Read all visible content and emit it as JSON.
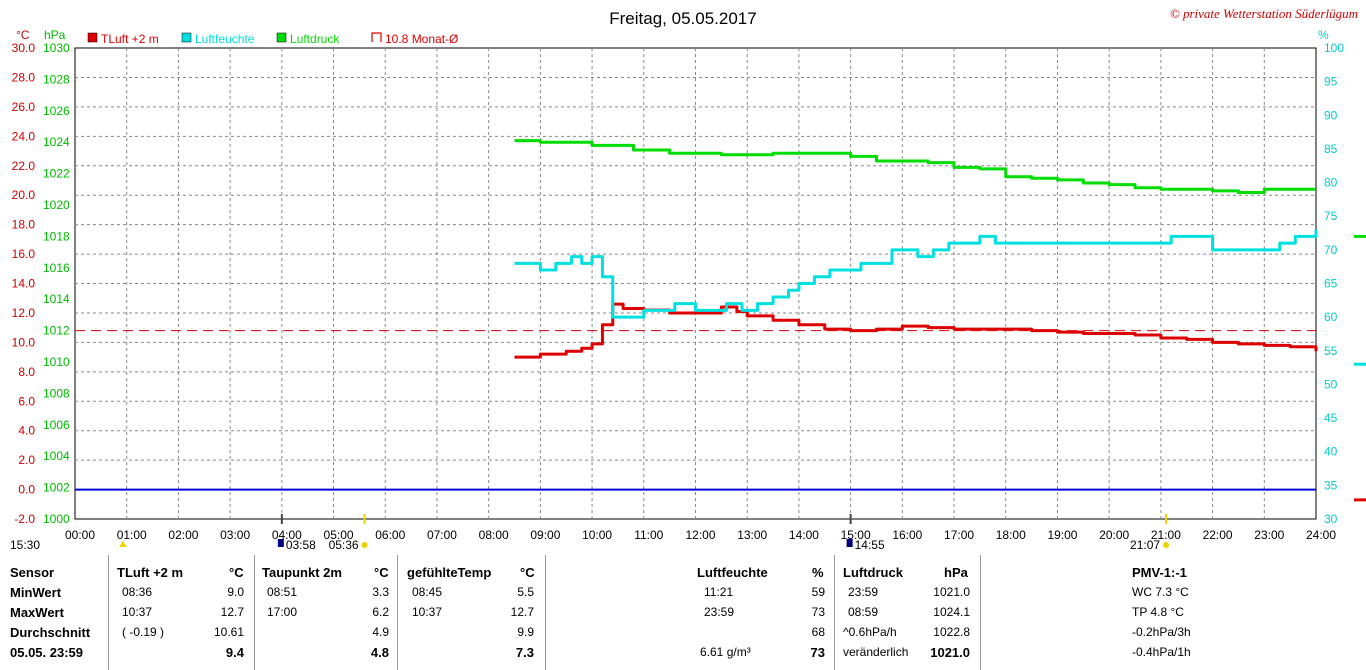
{
  "chart_data": {
    "type": "line",
    "title": "Freitag, 05.05.2017",
    "copyright": "© private Wetterstation Süderlügum",
    "left_unit_temp": "°C",
    "left_unit_press": "hPa",
    "right_unit": "%",
    "legend": [
      {
        "name": "TLuft +2 m",
        "color": "#dd0000"
      },
      {
        "name": "Luftfeuchte",
        "color": "#00e0e0"
      },
      {
        "name": "Luftdruck",
        "color": "#00dd00"
      },
      {
        "name": "10.8 Monat-Ø",
        "color": "#dd0000"
      }
    ],
    "x_ticks": [
      "00:00",
      "01:00",
      "02:00",
      "03:00",
      "04:00",
      "05:00",
      "06:00",
      "07:00",
      "08:00",
      "09:00",
      "10:00",
      "11:00",
      "12:00",
      "13:00",
      "14:00",
      "15:00",
      "16:00",
      "17:00",
      "18:00",
      "19:00",
      "20:00",
      "21:00",
      "22:00",
      "23:00",
      "24:00"
    ],
    "xlim": [
      0,
      24
    ],
    "temp_ticks": [
      "30.0",
      "28.0",
      "26.0",
      "24.0",
      "22.0",
      "20.0",
      "18.0",
      "16.0",
      "14.0",
      "12.0",
      "10.0",
      "8.0",
      "6.0",
      "4.0",
      "2.0",
      "0.0",
      "-2.0"
    ],
    "temp_range": [
      -2,
      30
    ],
    "press_ticks": [
      "1030",
      "1028",
      "1026",
      "1024",
      "1022",
      "1020",
      "1018",
      "1016",
      "1014",
      "1012",
      "1010",
      "1008",
      "1006",
      "1004",
      "1002",
      "1000"
    ],
    "press_range": [
      1000,
      1030
    ],
    "hum_ticks": [
      "100",
      "95",
      "90",
      "85",
      "80",
      "75",
      "70",
      "65",
      "60",
      "55",
      "50",
      "45",
      "40",
      "35",
      "30"
    ],
    "hum_range": [
      30,
      100
    ],
    "monthly_avg_temp": 10.8,
    "zero_line_temp": 0.0,
    "series": [
      {
        "name": "TLuft +2 m",
        "axis": "temp",
        "color": "#dd0000",
        "x": [
          8.5,
          9.0,
          9.5,
          9.8,
          10.0,
          10.2,
          10.4,
          10.6,
          11.0,
          11.5,
          12.0,
          12.5,
          12.8,
          13.0,
          13.5,
          14.0,
          14.5,
          15.0,
          15.5,
          16.0,
          16.5,
          17.0,
          17.5,
          18.0,
          18.5,
          19.0,
          19.5,
          20.0,
          20.5,
          21.0,
          21.5,
          22.0,
          22.5,
          23.0,
          23.5,
          24.0
        ],
        "y": [
          9.0,
          9.2,
          9.4,
          9.6,
          9.9,
          11.2,
          12.6,
          12.3,
          12.2,
          12.0,
          12.0,
          12.4,
          12.1,
          11.8,
          11.5,
          11.2,
          10.9,
          10.8,
          10.9,
          11.1,
          11.0,
          10.9,
          10.9,
          10.9,
          10.8,
          10.7,
          10.6,
          10.6,
          10.5,
          10.3,
          10.2,
          10.0,
          9.9,
          9.8,
          9.7,
          9.4
        ]
      },
      {
        "name": "Luftfeuchte",
        "axis": "hum",
        "color": "#00e0e0",
        "x": [
          8.5,
          8.8,
          9.0,
          9.3,
          9.6,
          9.8,
          10.0,
          10.2,
          10.4,
          10.6,
          11.0,
          11.3,
          11.6,
          12.0,
          12.3,
          12.6,
          12.9,
          13.2,
          13.5,
          13.8,
          14.0,
          14.3,
          14.6,
          14.9,
          15.2,
          15.5,
          15.8,
          16.0,
          16.3,
          16.6,
          16.9,
          17.2,
          17.5,
          17.8,
          18.0,
          18.5,
          19.0,
          19.5,
          20.0,
          20.5,
          21.0,
          21.2,
          21.5,
          22.0,
          22.5,
          23.0,
          23.3,
          23.6,
          24.0
        ],
        "y": [
          68,
          68,
          67,
          68,
          69,
          68,
          69,
          66,
          60,
          60,
          61,
          61,
          62,
          61,
          61,
          62,
          61,
          62,
          63,
          64,
          65,
          66,
          67,
          67,
          68,
          68,
          70,
          70,
          69,
          70,
          71,
          71,
          72,
          71,
          71,
          71,
          71,
          71,
          71,
          71,
          71,
          72,
          72,
          70,
          70,
          70,
          71,
          72,
          73
        ]
      },
      {
        "name": "Luftdruck",
        "axis": "press",
        "color": "#00dd00",
        "x": [
          8.5,
          9.0,
          10.0,
          10.8,
          11.5,
          12.5,
          13.5,
          14.5,
          15.0,
          15.5,
          16.5,
          17.0,
          17.5,
          18.0,
          18.5,
          19.0,
          19.5,
          20.0,
          20.5,
          21.0,
          21.5,
          22.0,
          22.5,
          23.0,
          23.5,
          24.0
        ],
        "y": [
          1024.1,
          1024.0,
          1023.8,
          1023.5,
          1023.3,
          1023.2,
          1023.3,
          1023.3,
          1023.1,
          1022.8,
          1022.7,
          1022.4,
          1022.3,
          1021.8,
          1021.7,
          1021.6,
          1021.4,
          1021.3,
          1021.1,
          1021.0,
          1021.0,
          1020.9,
          1020.8,
          1021.0,
          1021.0,
          1021.0
        ]
      }
    ],
    "right_markers": [
      {
        "axis": "press",
        "value": 1018.0,
        "color": "#00dd00"
      },
      {
        "axis": "hum",
        "value": 53,
        "color": "#00e0e0"
      },
      {
        "axis": "temp",
        "value": -0.7,
        "color": "#dd0000"
      }
    ],
    "below_axis": [
      {
        "label": "15:30",
        "x": 0.0,
        "icon": "moon-set-icon"
      },
      {
        "label": "03:58",
        "x": 4.0,
        "icon": "moon-rise-icon"
      },
      {
        "label": "05:36",
        "x": 5.6,
        "icon": "sunrise-icon"
      },
      {
        "label": "14:55",
        "x": 15.0,
        "icon": "moon-icon"
      },
      {
        "label": "21:07",
        "x": 21.1,
        "icon": "sunset-icon"
      }
    ]
  },
  "stats": {
    "sensor": {
      "header": "Sensor",
      "rows": [
        "MinWert",
        "MaxWert",
        "Durchschnitt",
        "05.05.  23:59"
      ]
    },
    "tluft": {
      "header": "TLuft +2 m",
      "unit": "°C",
      "rows": [
        [
          "08:36",
          "9.0"
        ],
        [
          "10:37",
          "12.7"
        ],
        [
          "( -0.19 )",
          "10.61"
        ],
        [
          "",
          "9.4"
        ]
      ]
    },
    "taupunkt": {
      "header": "Taupunkt 2m",
      "unit": "°C",
      "rows": [
        [
          "08:51",
          "3.3"
        ],
        [
          "17:00",
          "6.2"
        ],
        [
          "",
          "4.9"
        ],
        [
          "",
          "4.8"
        ]
      ]
    },
    "gefuehlt": {
      "header": "gefühlteTemp",
      "unit": "°C",
      "rows": [
        [
          "08:45",
          "5.5"
        ],
        [
          "10:37",
          "12.7"
        ],
        [
          "",
          "9.9"
        ],
        [
          "",
          "7.3"
        ]
      ]
    },
    "feuchte": {
      "header": "Luftfeuchte",
      "unit": "%",
      "rows": [
        [
          "11:21",
          "59"
        ],
        [
          "23:59",
          "73"
        ],
        [
          "",
          "68"
        ],
        [
          "6.61 g/m³",
          "73"
        ]
      ]
    },
    "druck": {
      "header": "Luftdruck",
      "unit": "hPa",
      "rows": [
        [
          "23:59",
          "1021.0"
        ],
        [
          "08:59",
          "1024.1"
        ],
        [
          "^0.6hPa/h",
          "1022.8"
        ],
        [
          "veränderlich",
          "1021.0"
        ]
      ]
    },
    "pmv": {
      "header": "PMV-1:-1",
      "rows": [
        "WC 7.3 °C",
        "TP 4.8 °C",
        "-0.2hPa/3h",
        "-0.4hPa/1h"
      ]
    }
  }
}
